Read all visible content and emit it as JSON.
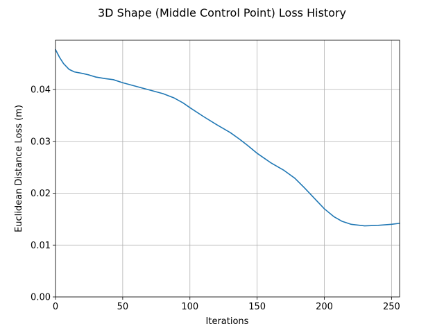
{
  "chart_data": {
    "type": "line",
    "title": "3D Shape (Middle Control Point) Loss History",
    "xlabel": "Iterations",
    "ylabel": "Euclidean Distance Loss (m)",
    "xlim": [
      0,
      256
    ],
    "ylim": [
      0,
      0.0495
    ],
    "xticks": [
      0,
      50,
      100,
      150,
      200,
      250
    ],
    "xtick_labels": [
      "0",
      "50",
      "100",
      "150",
      "200",
      "250"
    ],
    "yticks": [
      0,
      0.01,
      0.02,
      0.03,
      0.04
    ],
    "ytick_labels": [
      "0.00",
      "0.01",
      "0.02",
      "0.03",
      "0.04"
    ],
    "grid": true,
    "line_color": "#1f77b4",
    "grid_color": "#b0b0b0",
    "series": [
      {
        "x": [
          0,
          3,
          6,
          10,
          14,
          20,
          25,
          30,
          37,
          43,
          50,
          60,
          70,
          80,
          88,
          95,
          100,
          110,
          120,
          130,
          137,
          143,
          150,
          160,
          170,
          178,
          185,
          193,
          200,
          207,
          213,
          220,
          230,
          240,
          250,
          256
        ],
        "y": [
          0.0477,
          0.0462,
          0.045,
          0.0439,
          0.0434,
          0.0431,
          0.0428,
          0.0424,
          0.0421,
          0.0419,
          0.0413,
          0.0406,
          0.0399,
          0.0392,
          0.0384,
          0.0374,
          0.0365,
          0.0348,
          0.0332,
          0.0317,
          0.0304,
          0.0292,
          0.0277,
          0.0259,
          0.0244,
          0.0229,
          0.0211,
          0.0189,
          0.017,
          0.0155,
          0.0146,
          0.014,
          0.0137,
          0.0138,
          0.014,
          0.0142
        ]
      }
    ]
  }
}
